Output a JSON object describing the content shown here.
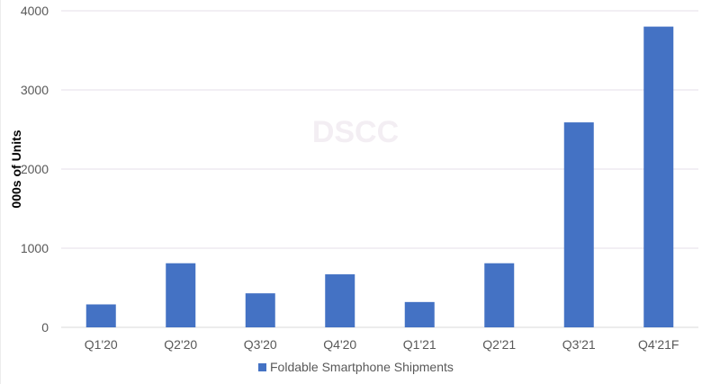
{
  "chart_data": {
    "type": "bar",
    "categories": [
      "Q1'20",
      "Q2'20",
      "Q3'20",
      "Q4'20",
      "Q1'21",
      "Q2'21",
      "Q3'21",
      "Q4'21F"
    ],
    "series": [
      {
        "name": "Foldable Smartphone Shipments",
        "values": [
          290,
          810,
          430,
          670,
          320,
          810,
          2590,
          3800
        ],
        "color": "#4472C4"
      }
    ],
    "xlabel": "",
    "ylabel": "000s of Units",
    "ylim": [
      0,
      4000
    ],
    "yticks": [
      0,
      1000,
      2000,
      3000,
      4000
    ],
    "grid": true,
    "legend": "bottom",
    "watermark": "DSCC"
  }
}
